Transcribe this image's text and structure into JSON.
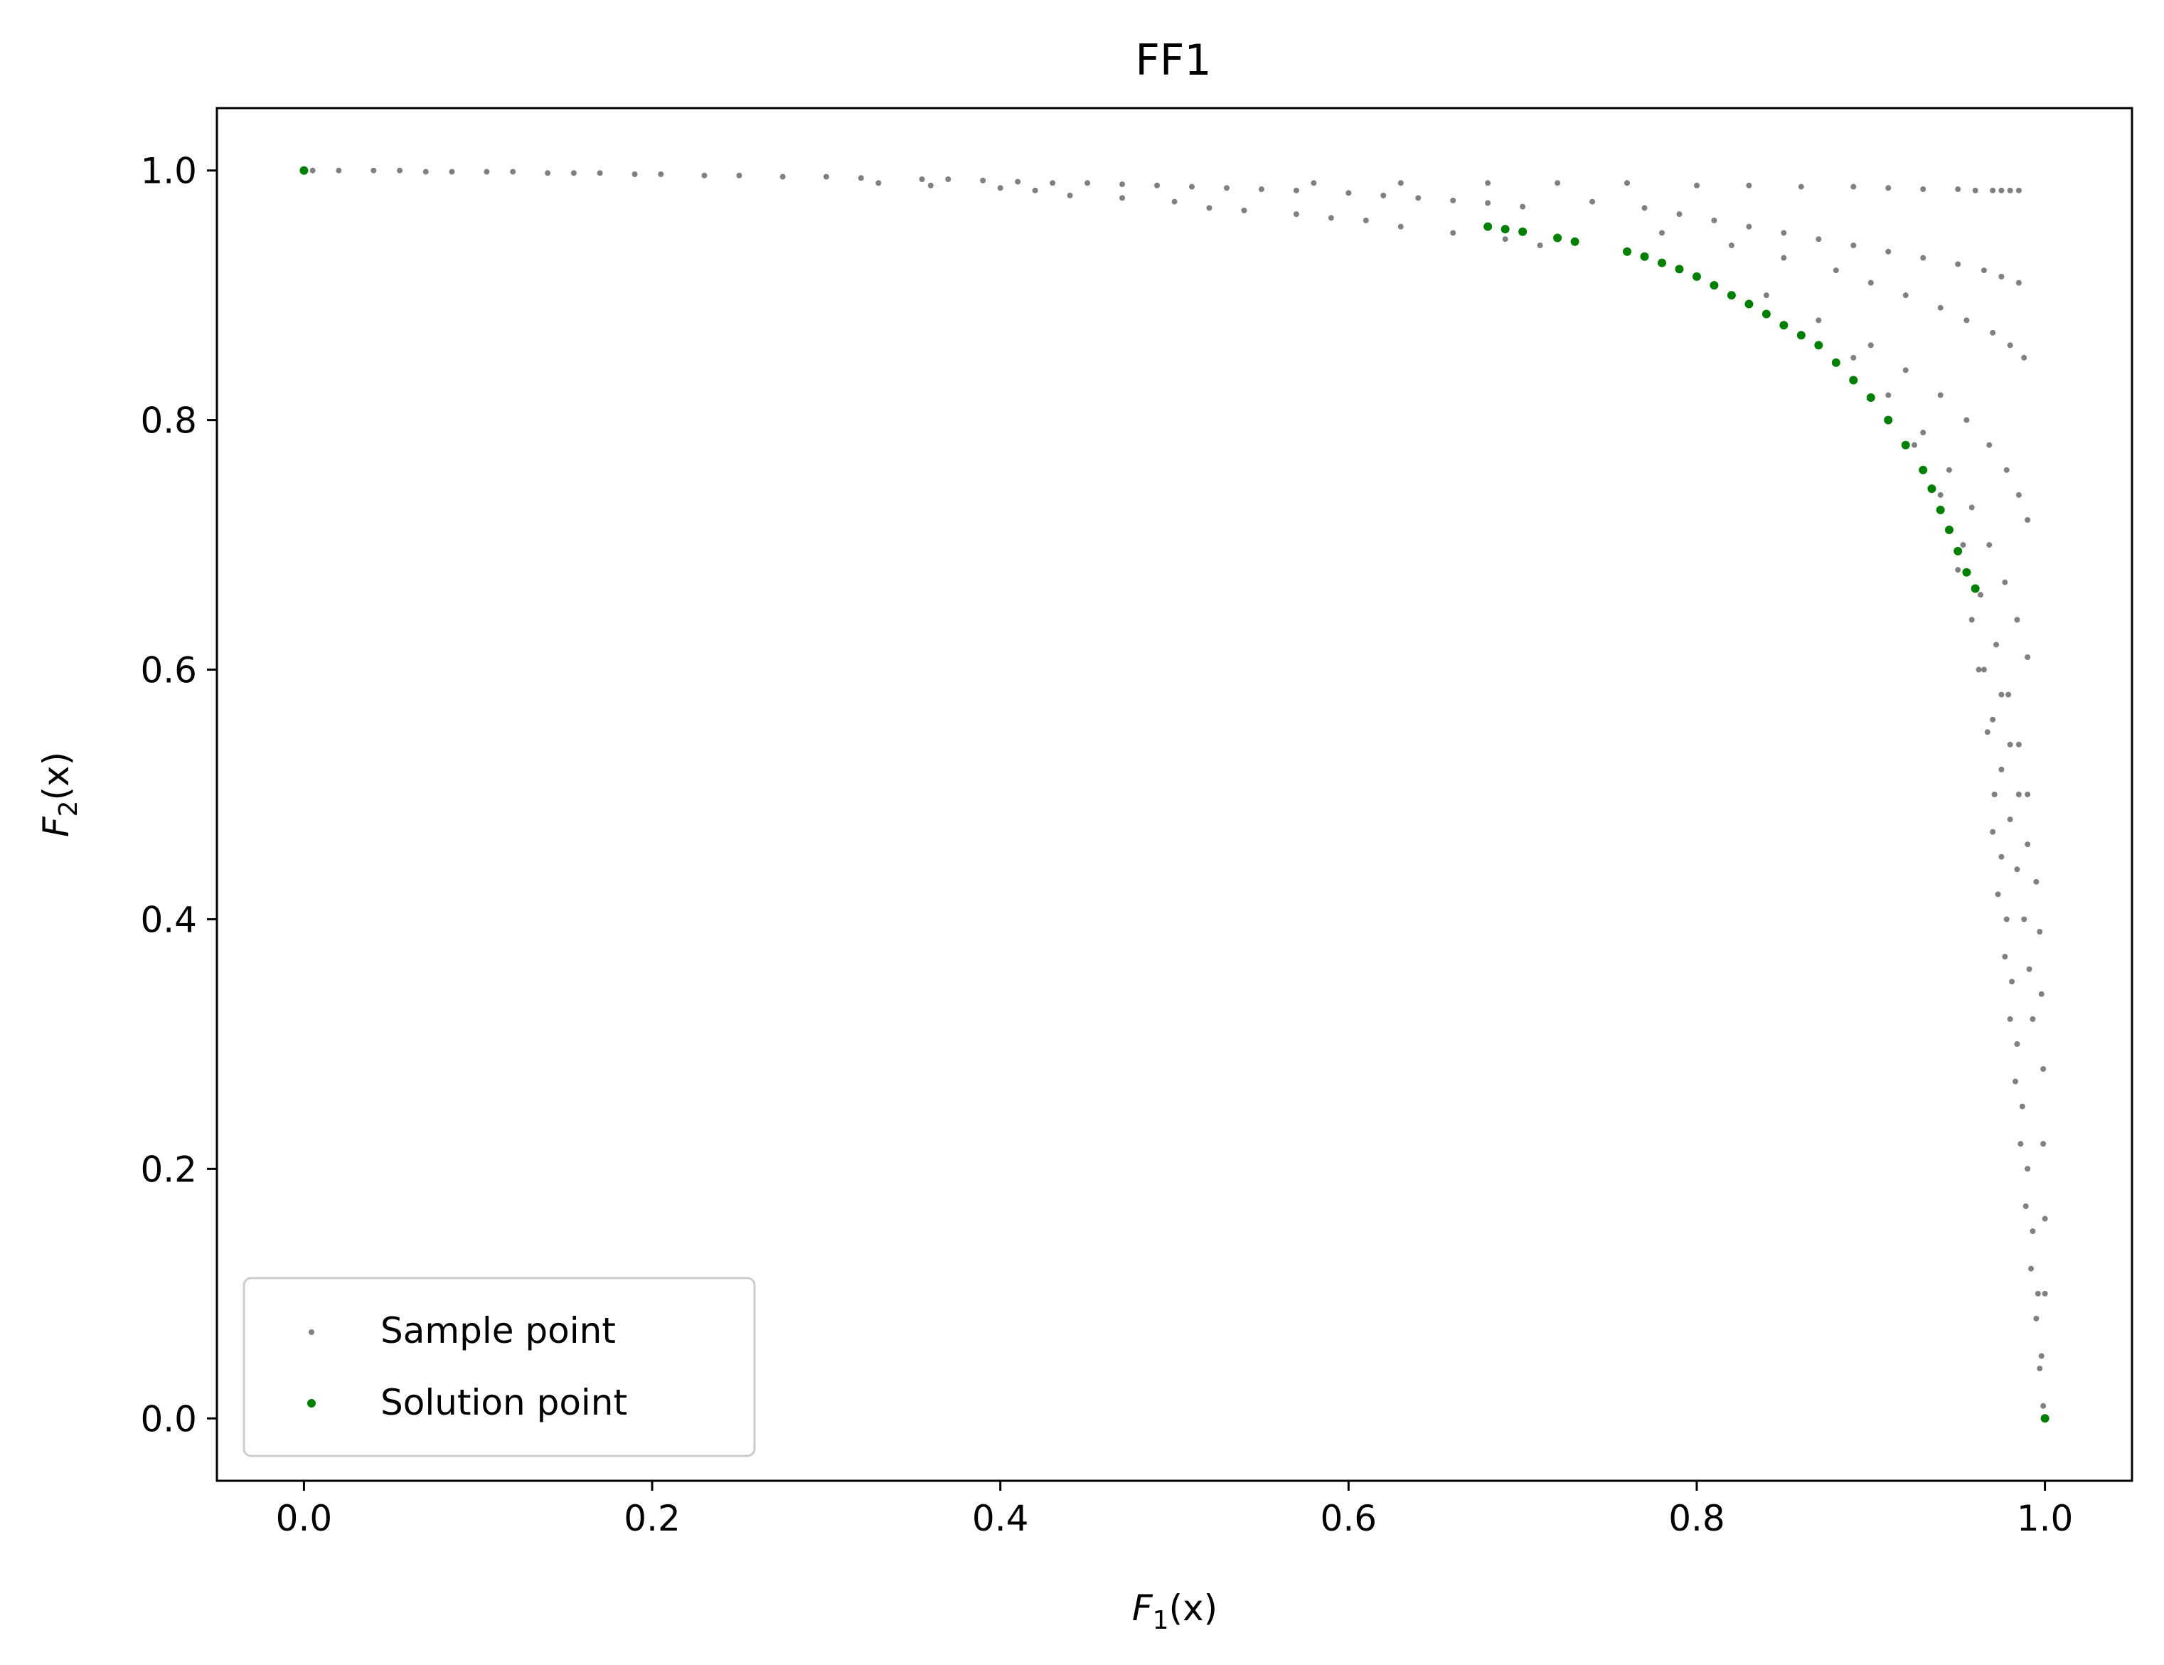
{
  "chart_data": {
    "type": "scatter",
    "title": "FF1",
    "xlabel": {
      "base": "F",
      "sub": "1",
      "arg": "(x)"
    },
    "ylabel": {
      "base": "F",
      "sub": "2",
      "arg": "(x)"
    },
    "xlim": [
      -0.05,
      1.05
    ],
    "ylim": [
      -0.05,
      1.05
    ],
    "xticks": [
      0.0,
      0.2,
      0.4,
      0.6,
      0.8,
      1.0
    ],
    "yticks": [
      0.0,
      0.2,
      0.4,
      0.6,
      0.8,
      1.0
    ],
    "xtick_labels": [
      "0.0",
      "0.2",
      "0.4",
      "0.6",
      "0.8",
      "1.0"
    ],
    "ytick_labels": [
      "0.0",
      "0.2",
      "0.4",
      "0.6",
      "0.8",
      "1.0"
    ],
    "grid": false,
    "legend_position": "lower-left",
    "series": [
      {
        "name": "Sample point",
        "color": "#808080",
        "marker_size": "small",
        "points": [
          [
            0.005,
            1.0
          ],
          [
            0.02,
            1.0
          ],
          [
            0.04,
            1.0
          ],
          [
            0.055,
            1.0
          ],
          [
            0.07,
            0.999
          ],
          [
            0.085,
            0.999
          ],
          [
            0.105,
            0.999
          ],
          [
            0.12,
            0.999
          ],
          [
            0.14,
            0.998
          ],
          [
            0.155,
            0.998
          ],
          [
            0.17,
            0.998
          ],
          [
            0.19,
            0.997
          ],
          [
            0.205,
            0.997
          ],
          [
            0.23,
            0.996
          ],
          [
            0.25,
            0.996
          ],
          [
            0.275,
            0.995
          ],
          [
            0.3,
            0.995
          ],
          [
            0.32,
            0.994
          ],
          [
            0.355,
            0.993
          ],
          [
            0.37,
            0.993
          ],
          [
            0.39,
            0.992
          ],
          [
            0.41,
            0.991
          ],
          [
            0.43,
            0.99
          ],
          [
            0.45,
            0.99
          ],
          [
            0.47,
            0.989
          ],
          [
            0.49,
            0.988
          ],
          [
            0.51,
            0.987
          ],
          [
            0.53,
            0.986
          ],
          [
            0.55,
            0.985
          ],
          [
            0.57,
            0.984
          ],
          [
            0.6,
            0.982
          ],
          [
            0.62,
            0.98
          ],
          [
            0.64,
            0.978
          ],
          [
            0.66,
            0.976
          ],
          [
            0.68,
            0.974
          ],
          [
            0.7,
            0.971
          ],
          [
            0.33,
            0.99
          ],
          [
            0.36,
            0.988
          ],
          [
            0.4,
            0.986
          ],
          [
            0.42,
            0.984
          ],
          [
            0.44,
            0.98
          ],
          [
            0.47,
            0.978
          ],
          [
            0.5,
            0.975
          ],
          [
            0.52,
            0.97
          ],
          [
            0.54,
            0.968
          ],
          [
            0.57,
            0.965
          ],
          [
            0.59,
            0.962
          ],
          [
            0.61,
            0.96
          ],
          [
            0.63,
            0.955
          ],
          [
            0.66,
            0.95
          ],
          [
            0.69,
            0.945
          ],
          [
            0.71,
            0.94
          ],
          [
            0.58,
            0.99
          ],
          [
            0.63,
            0.99
          ],
          [
            0.68,
            0.99
          ],
          [
            0.72,
            0.99
          ],
          [
            0.76,
            0.99
          ],
          [
            0.8,
            0.988
          ],
          [
            0.83,
            0.988
          ],
          [
            0.86,
            0.987
          ],
          [
            0.89,
            0.987
          ],
          [
            0.91,
            0.986
          ],
          [
            0.93,
            0.985
          ],
          [
            0.95,
            0.985
          ],
          [
            0.96,
            0.984
          ],
          [
            0.97,
            0.984
          ],
          [
            0.975,
            0.984
          ],
          [
            0.98,
            0.984
          ],
          [
            0.985,
            0.984
          ],
          [
            0.74,
            0.975
          ],
          [
            0.77,
            0.97
          ],
          [
            0.79,
            0.965
          ],
          [
            0.81,
            0.96
          ],
          [
            0.83,
            0.955
          ],
          [
            0.85,
            0.95
          ],
          [
            0.87,
            0.945
          ],
          [
            0.89,
            0.94
          ],
          [
            0.91,
            0.935
          ],
          [
            0.93,
            0.93
          ],
          [
            0.95,
            0.925
          ],
          [
            0.965,
            0.92
          ],
          [
            0.975,
            0.915
          ],
          [
            0.985,
            0.91
          ],
          [
            0.78,
            0.95
          ],
          [
            0.82,
            0.94
          ],
          [
            0.85,
            0.93
          ],
          [
            0.88,
            0.92
          ],
          [
            0.9,
            0.91
          ],
          [
            0.92,
            0.9
          ],
          [
            0.94,
            0.89
          ],
          [
            0.955,
            0.88
          ],
          [
            0.97,
            0.87
          ],
          [
            0.98,
            0.86
          ],
          [
            0.988,
            0.85
          ],
          [
            0.84,
            0.9
          ],
          [
            0.87,
            0.88
          ],
          [
            0.9,
            0.86
          ],
          [
            0.92,
            0.84
          ],
          [
            0.94,
            0.82
          ],
          [
            0.955,
            0.8
          ],
          [
            0.968,
            0.78
          ],
          [
            0.978,
            0.76
          ],
          [
            0.985,
            0.74
          ],
          [
            0.99,
            0.72
          ],
          [
            0.89,
            0.85
          ],
          [
            0.91,
            0.82
          ],
          [
            0.93,
            0.79
          ],
          [
            0.945,
            0.76
          ],
          [
            0.958,
            0.73
          ],
          [
            0.968,
            0.7
          ],
          [
            0.977,
            0.67
          ],
          [
            0.984,
            0.64
          ],
          [
            0.99,
            0.61
          ],
          [
            0.925,
            0.78
          ],
          [
            0.94,
            0.74
          ],
          [
            0.953,
            0.7
          ],
          [
            0.963,
            0.66
          ],
          [
            0.972,
            0.62
          ],
          [
            0.979,
            0.58
          ],
          [
            0.985,
            0.54
          ],
          [
            0.99,
            0.5
          ],
          [
            0.95,
            0.68
          ],
          [
            0.958,
            0.64
          ],
          [
            0.965,
            0.6
          ],
          [
            0.97,
            0.56
          ],
          [
            0.975,
            0.52
          ],
          [
            0.98,
            0.48
          ],
          [
            0.984,
            0.44
          ],
          [
            0.988,
            0.4
          ],
          [
            0.991,
            0.36
          ],
          [
            0.993,
            0.32
          ],
          [
            0.962,
            0.6
          ],
          [
            0.967,
            0.55
          ],
          [
            0.971,
            0.5
          ],
          [
            0.975,
            0.45
          ],
          [
            0.978,
            0.4
          ],
          [
            0.981,
            0.35
          ],
          [
            0.984,
            0.3
          ],
          [
            0.987,
            0.25
          ],
          [
            0.99,
            0.2
          ],
          [
            0.993,
            0.15
          ],
          [
            0.996,
            0.1
          ],
          [
            0.998,
            0.05
          ],
          [
            0.97,
            0.47
          ],
          [
            0.973,
            0.42
          ],
          [
            0.977,
            0.37
          ],
          [
            0.98,
            0.32
          ],
          [
            0.983,
            0.27
          ],
          [
            0.986,
            0.22
          ],
          [
            0.989,
            0.17
          ],
          [
            0.992,
            0.12
          ],
          [
            0.995,
            0.08
          ],
          [
            0.997,
            0.04
          ],
          [
            0.999,
            0.01
          ],
          [
            0.975,
            0.58
          ],
          [
            0.98,
            0.54
          ],
          [
            0.985,
            0.5
          ],
          [
            0.99,
            0.46
          ],
          [
            0.995,
            0.43
          ],
          [
            0.997,
            0.39
          ],
          [
            0.998,
            0.34
          ],
          [
            0.999,
            0.28
          ],
          [
            0.999,
            0.22
          ],
          [
            1.0,
            0.16
          ],
          [
            1.0,
            0.1
          ]
        ]
      },
      {
        "name": "Solution point",
        "color": "#008000",
        "marker_size": "medium",
        "points": [
          [
            0.0,
            1.0
          ],
          [
            0.68,
            0.955
          ],
          [
            0.69,
            0.953
          ],
          [
            0.7,
            0.951
          ],
          [
            0.72,
            0.946
          ],
          [
            0.73,
            0.943
          ],
          [
            0.76,
            0.935
          ],
          [
            0.77,
            0.931
          ],
          [
            0.78,
            0.926
          ],
          [
            0.79,
            0.921
          ],
          [
            0.8,
            0.915
          ],
          [
            0.81,
            0.908
          ],
          [
            0.82,
            0.9
          ],
          [
            0.83,
            0.893
          ],
          [
            0.84,
            0.885
          ],
          [
            0.85,
            0.876
          ],
          [
            0.86,
            0.868
          ],
          [
            0.87,
            0.86
          ],
          [
            0.88,
            0.846
          ],
          [
            0.89,
            0.832
          ],
          [
            0.9,
            0.818
          ],
          [
            0.91,
            0.8
          ],
          [
            0.92,
            0.78
          ],
          [
            0.93,
            0.76
          ],
          [
            0.935,
            0.745
          ],
          [
            0.94,
            0.728
          ],
          [
            0.945,
            0.712
          ],
          [
            0.95,
            0.695
          ],
          [
            0.955,
            0.678
          ],
          [
            0.96,
            0.665
          ],
          [
            1.0,
            0.0
          ]
        ]
      }
    ]
  }
}
